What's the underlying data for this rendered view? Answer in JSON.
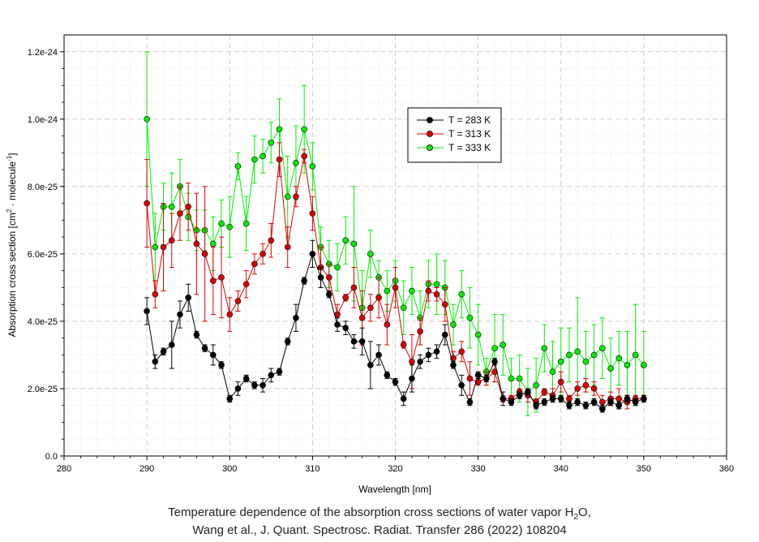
{
  "chart_data": {
    "type": "line",
    "xlabel": "Wavelength [nm]",
    "ylabel_main": "Absorption cross section [cm",
    "ylabel_sup1": "2",
    "ylabel_mid": " · molecule",
    "ylabel_sup2": "-1",
    "ylabel_end": "]",
    "xlim": [
      280,
      360
    ],
    "ylim": [
      0,
      1.25e-24
    ],
    "xticks": [
      280,
      290,
      300,
      310,
      320,
      330,
      340,
      350,
      360
    ],
    "yticks": [
      0,
      2e-25,
      4e-25,
      6e-25,
      8e-25,
      1e-24,
      1.2e-24
    ],
    "ytick_labels": [
      "0.0",
      "2.0e-25",
      "4.0e-25",
      "6.0e-25",
      "8.0e-25",
      "1.0e-24",
      "1.2e-24"
    ],
    "grid": true,
    "legend_position": "upper-center",
    "x": [
      290,
      291,
      292,
      293,
      294,
      295,
      296,
      297,
      298,
      299,
      300,
      301,
      302,
      303,
      304,
      305,
      306,
      307,
      308,
      309,
      310,
      311,
      312,
      313,
      314,
      315,
      316,
      317,
      318,
      319,
      320,
      321,
      322,
      323,
      324,
      325,
      326,
      327,
      328,
      329,
      330,
      331,
      332,
      333,
      334,
      335,
      336,
      337,
      338,
      339,
      340,
      341,
      342,
      343,
      344,
      345,
      346,
      347,
      348,
      349,
      350
    ],
    "series": [
      {
        "name": "T = 283 K",
        "color": "#000000",
        "values": [
          0.43,
          0.28,
          0.31,
          0.33,
          0.42,
          0.47,
          0.36,
          0.32,
          0.3,
          0.27,
          0.17,
          0.2,
          0.23,
          0.21,
          0.21,
          0.24,
          0.25,
          0.34,
          0.41,
          0.52,
          0.6,
          0.53,
          0.48,
          0.39,
          0.38,
          0.34,
          0.34,
          0.27,
          0.3,
          0.24,
          0.22,
          0.17,
          0.23,
          0.28,
          0.3,
          0.31,
          0.36,
          0.27,
          0.21,
          0.16,
          0.24,
          0.23,
          0.28,
          0.17,
          0.16,
          0.18,
          0.19,
          0.15,
          0.16,
          0.17,
          0.17,
          0.15,
          0.16,
          0.15,
          0.16,
          0.14,
          0.16,
          0.15,
          0.17,
          0.16,
          0.17
        ],
        "errors": [
          0.04,
          0.02,
          0.01,
          0.07,
          0.04,
          0.04,
          0.01,
          0.01,
          0.03,
          0.01,
          0.01,
          0.02,
          0.01,
          0.01,
          0.02,
          0.02,
          0.01,
          0.01,
          0.04,
          0.01,
          0.04,
          0.03,
          0.01,
          0.02,
          0.02,
          0.02,
          0.04,
          0.07,
          0.03,
          0.01,
          0.01,
          0.02,
          0.04,
          0.02,
          0.02,
          0.02,
          0.03,
          0.01,
          0.03,
          0.01,
          0.01,
          0.01,
          0.01,
          0.02,
          0.01,
          0.01,
          0.01,
          0.01,
          0.01,
          0.01,
          0.01,
          0.01,
          0.01,
          0.01,
          0.01,
          0.01,
          0.01,
          0.01,
          0.01,
          0.01,
          0.01
        ]
      },
      {
        "name": "T = 313 K",
        "color": "#dd0000",
        "values": [
          0.75,
          0.48,
          0.62,
          0.64,
          0.72,
          0.74,
          0.63,
          0.6,
          0.52,
          0.53,
          0.42,
          0.46,
          0.51,
          0.57,
          0.6,
          0.64,
          0.88,
          0.62,
          0.77,
          0.89,
          0.72,
          0.56,
          0.53,
          0.42,
          0.47,
          0.5,
          0.41,
          0.44,
          0.47,
          0.39,
          0.5,
          0.33,
          0.28,
          0.37,
          0.49,
          0.48,
          0.45,
          0.29,
          0.31,
          0.23,
          0.22,
          0.23,
          0.25,
          0.17,
          0.17,
          0.19,
          0.18,
          0.16,
          0.19,
          0.18,
          0.22,
          0.17,
          0.2,
          0.21,
          0.2,
          0.16,
          0.17,
          0.17,
          0.16,
          0.17,
          0.17
        ],
        "errors": [
          0.13,
          0.04,
          0.13,
          0.08,
          0.08,
          0.07,
          0.15,
          0.2,
          0.1,
          0.12,
          0.05,
          0.03,
          0.04,
          0.03,
          0.03,
          0.05,
          0.05,
          0.06,
          0.03,
          0.02,
          0.05,
          0.06,
          0.04,
          0.03,
          0.01,
          0.06,
          0.08,
          0.04,
          0.06,
          0.06,
          0.06,
          0.01,
          0.08,
          0.04,
          0.03,
          0.02,
          0.05,
          0.02,
          0.03,
          0.05,
          0.01,
          0.02,
          0.03,
          0.01,
          0.01,
          0.01,
          0.02,
          0.01,
          0.01,
          0.02,
          0.03,
          0.01,
          0.02,
          0.02,
          0.02,
          0.02,
          0.02,
          0.03,
          0.02,
          0.01,
          0.01
        ]
      },
      {
        "name": "T = 333 K",
        "color": "#00ee00",
        "values": [
          1.0,
          0.62,
          0.74,
          0.74,
          0.8,
          0.71,
          0.67,
          0.67,
          0.63,
          0.69,
          0.68,
          0.86,
          0.69,
          0.88,
          0.89,
          0.93,
          0.97,
          0.77,
          0.87,
          0.97,
          0.86,
          0.62,
          0.57,
          0.56,
          0.64,
          0.63,
          0.44,
          0.6,
          0.53,
          0.49,
          0.52,
          0.44,
          0.49,
          0.41,
          0.51,
          0.51,
          0.5,
          0.39,
          0.48,
          0.41,
          0.36,
          0.25,
          0.32,
          0.33,
          0.23,
          0.23,
          0.19,
          0.21,
          0.32,
          0.25,
          0.28,
          0.3,
          0.31,
          0.28,
          0.3,
          0.32,
          0.26,
          0.29,
          0.27,
          0.3,
          0.27
        ],
        "errors": [
          0.2,
          0.1,
          0.07,
          0.1,
          0.08,
          0.07,
          0.06,
          0.06,
          0.08,
          0.07,
          0.09,
          0.04,
          0.08,
          0.07,
          0.05,
          0.06,
          0.09,
          0.12,
          0.11,
          0.13,
          0.07,
          0.06,
          0.07,
          0.07,
          0.07,
          0.17,
          0.11,
          0.07,
          0.05,
          0.06,
          0.06,
          0.08,
          0.07,
          0.08,
          0.07,
          0.09,
          0.08,
          0.06,
          0.07,
          0.09,
          0.09,
          0.04,
          0.1,
          0.09,
          0.06,
          0.07,
          0.07,
          0.08,
          0.07,
          0.09,
          0.1,
          0.08,
          0.16,
          0.09,
          0.09,
          0.09,
          0.09,
          0.08,
          0.1,
          0.15,
          0.1
        ]
      }
    ],
    "value_scale": 1e-24
  },
  "caption": {
    "line1_text": "Temperature dependence of the absorption cross sections of water vapor H",
    "line1_sub": "2",
    "line1_end": "O,",
    "line2": "Wang et al., J. Quant. Spectrosc. Radiat. Transfer 286 (2022) 108204"
  }
}
